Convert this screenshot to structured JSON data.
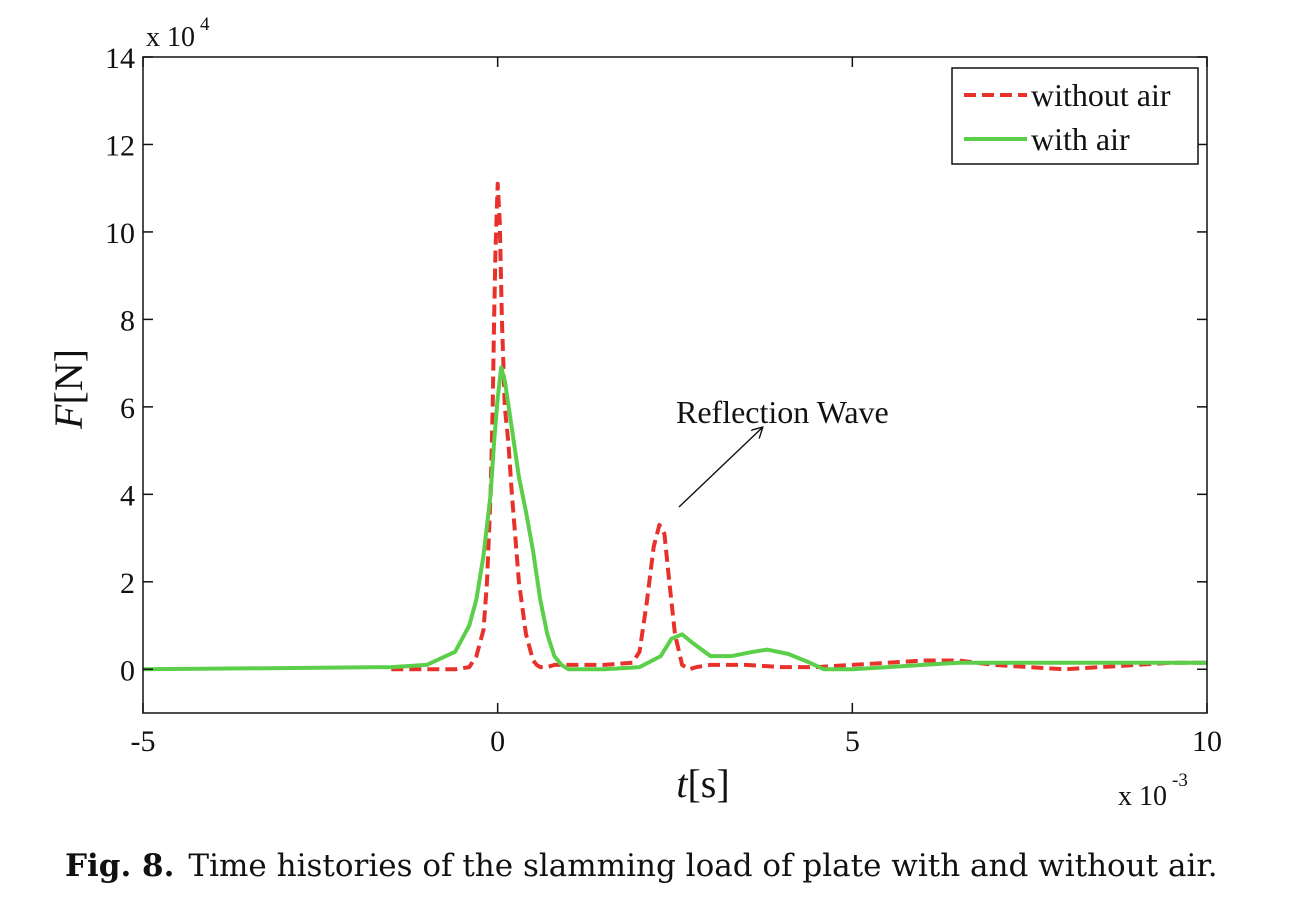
{
  "chart_data": {
    "type": "line",
    "xlabel_italic": "t",
    "xlabel_rest": "[s]",
    "ylabel_italic": "F",
    "ylabel_rest": "[N]",
    "x_multiplier": {
      "base": "x 10",
      "exp": "-3"
    },
    "y_multiplier": {
      "base": "x 10",
      "exp": "4"
    },
    "xlim": [
      -5,
      10
    ],
    "ylim": [
      -1,
      14
    ],
    "xticks": [
      -5,
      0,
      5,
      10
    ],
    "xtick_labels": [
      "-5",
      "0",
      "5",
      "10"
    ],
    "yticks": [
      0,
      2,
      4,
      6,
      8,
      10,
      12,
      14
    ],
    "ytick_labels": [
      "0",
      "2",
      "4",
      "6",
      "8",
      "10",
      "12",
      "14"
    ],
    "grid": false,
    "legend_position": "top-right",
    "series": [
      {
        "name": "without air",
        "color": "#e8312a",
        "style": "dashed",
        "x": [
          -1.5,
          -1.0,
          -0.6,
          -0.4,
          -0.3,
          -0.2,
          -0.15,
          -0.1,
          -0.07,
          -0.05,
          -0.03,
          0.0,
          0.03,
          0.06,
          0.1,
          0.15,
          0.2,
          0.3,
          0.4,
          0.5,
          0.55,
          0.6,
          0.7,
          0.8,
          1.0,
          1.5,
          1.9,
          2.0,
          2.1,
          2.2,
          2.28,
          2.35,
          2.42,
          2.5,
          2.6,
          2.7,
          2.8,
          3.0,
          3.5,
          4.0,
          4.5,
          5.0,
          5.5,
          6.0,
          6.5,
          7.0,
          7.5,
          8.0,
          8.5,
          9.0,
          9.5,
          10.0
        ],
        "y": [
          0,
          0,
          0,
          0.05,
          0.3,
          0.9,
          2.0,
          4.0,
          6.0,
          8.0,
          9.6,
          11.1,
          10.2,
          8.0,
          6.0,
          5.2,
          4.0,
          2.0,
          0.8,
          0.2,
          0.1,
          0.05,
          0.05,
          0.1,
          0.1,
          0.1,
          0.15,
          0.4,
          1.5,
          2.8,
          3.3,
          3.1,
          2.0,
          0.8,
          0.1,
          0.0,
          0.05,
          0.1,
          0.1,
          0.05,
          0.05,
          0.1,
          0.15,
          0.2,
          0.2,
          0.1,
          0.05,
          0.0,
          0.05,
          0.1,
          0.15,
          0.15
        ]
      },
      {
        "name": "with air",
        "color": "#5bcf4a",
        "style": "solid",
        "x": [
          -5,
          -1.5,
          -1.0,
          -0.6,
          -0.4,
          -0.3,
          -0.2,
          -0.1,
          -0.05,
          0.0,
          0.05,
          0.1,
          0.2,
          0.3,
          0.4,
          0.5,
          0.6,
          0.7,
          0.8,
          0.9,
          1.0,
          1.5,
          2.0,
          2.3,
          2.45,
          2.6,
          2.75,
          3.0,
          3.3,
          3.6,
          3.8,
          4.1,
          4.4,
          4.6,
          5.0,
          5.5,
          6.0,
          6.5,
          7.0,
          8.0,
          9.0,
          10.0
        ],
        "y": [
          0,
          0.05,
          0.1,
          0.4,
          1.0,
          1.6,
          2.6,
          4.0,
          5.2,
          6.2,
          6.9,
          6.6,
          5.5,
          4.4,
          3.6,
          2.7,
          1.6,
          0.8,
          0.3,
          0.1,
          0.0,
          0.0,
          0.05,
          0.3,
          0.7,
          0.8,
          0.6,
          0.3,
          0.3,
          0.4,
          0.45,
          0.35,
          0.15,
          0.0,
          0.0,
          0.05,
          0.1,
          0.15,
          0.15,
          0.15,
          0.15,
          0.15
        ]
      }
    ],
    "annotations": [
      {
        "text": "Reflection Wave",
        "point_x": 2.5,
        "point_y": 3.3,
        "label_x": 3.7,
        "label_y": 5.5
      }
    ]
  },
  "caption": {
    "label": "Fig. 8.",
    "text": "Time histories of the slamming load of plate with and without air."
  }
}
